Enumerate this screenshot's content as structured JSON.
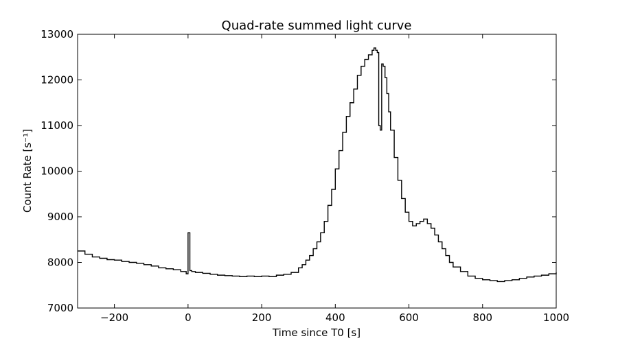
{
  "chart_data": {
    "type": "line",
    "title": "Quad-rate summed light curve",
    "xlabel": "Time since T0 [s]",
    "ylabel": "Count Rate [s⁻¹]",
    "xlim": [
      -300,
      1000
    ],
    "ylim": [
      7000,
      13000
    ],
    "xticks": [
      -200,
      0,
      200,
      400,
      600,
      800,
      1000
    ],
    "yticks": [
      7000,
      8000,
      9000,
      10000,
      11000,
      12000,
      13000
    ],
    "xtick_labels": [
      "−200",
      "0",
      "200",
      "400",
      "600",
      "800",
      "1000"
    ],
    "ytick_labels": [
      "7000",
      "8000",
      "9000",
      "10000",
      "11000",
      "12000",
      "13000"
    ],
    "grid": false,
    "line_color": "#000000",
    "series": [
      {
        "x": [
          -300,
          -280,
          -260,
          -240,
          -220,
          -200,
          -180,
          -160,
          -140,
          -120,
          -100,
          -80,
          -60,
          -40,
          -20,
          -5,
          0,
          5,
          10,
          20,
          40,
          60,
          80,
          100,
          120,
          140,
          160,
          180,
          200,
          220,
          240,
          260,
          280,
          300,
          310,
          320,
          330,
          340,
          350,
          360,
          370,
          380,
          390,
          400,
          410,
          420,
          430,
          440,
          450,
          460,
          470,
          480,
          490,
          500,
          505,
          510,
          514,
          518,
          522,
          526,
          530,
          535,
          540,
          545,
          550,
          560,
          570,
          580,
          590,
          600,
          610,
          620,
          630,
          640,
          650,
          660,
          670,
          680,
          690,
          700,
          710,
          720,
          740,
          760,
          780,
          800,
          820,
          840,
          860,
          880,
          900,
          920,
          940,
          960,
          980,
          1000
        ],
        "y": [
          8250,
          8180,
          8120,
          8090,
          8060,
          8050,
          8020,
          8000,
          7980,
          7950,
          7920,
          7880,
          7860,
          7840,
          7800,
          7750,
          8650,
          7820,
          7800,
          7780,
          7760,
          7740,
          7720,
          7710,
          7700,
          7690,
          7700,
          7690,
          7700,
          7690,
          7720,
          7740,
          7780,
          7880,
          7950,
          8050,
          8150,
          8300,
          8450,
          8650,
          8900,
          9250,
          9600,
          10050,
          10450,
          10850,
          11200,
          11500,
          11800,
          12100,
          12300,
          12450,
          12550,
          12650,
          12700,
          12650,
          12600,
          11000,
          10900,
          12350,
          12300,
          12050,
          11700,
          11300,
          10900,
          10300,
          9800,
          9400,
          9100,
          8900,
          8800,
          8850,
          8900,
          8950,
          8850,
          8750,
          8600,
          8450,
          8300,
          8150,
          8000,
          7900,
          7800,
          7700,
          7650,
          7620,
          7600,
          7580,
          7600,
          7620,
          7650,
          7680,
          7700,
          7720,
          7750,
          7780
        ]
      }
    ]
  }
}
